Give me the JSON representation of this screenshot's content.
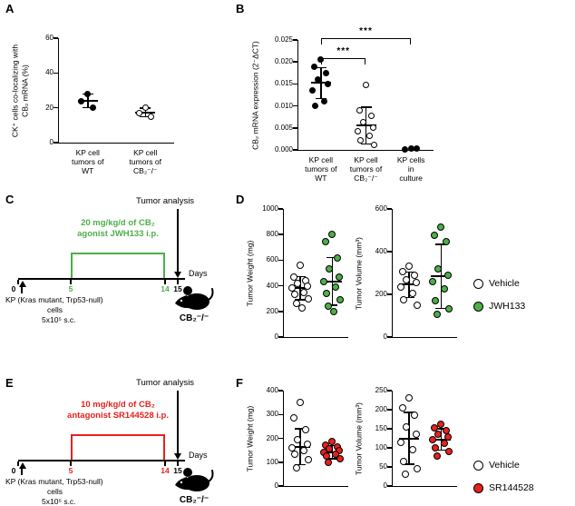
{
  "colors": {
    "green": "#4daf4a",
    "red": "#e8211d",
    "black": "#000000",
    "white": "#ffffff"
  },
  "panels": {
    "A": {
      "label": "A"
    },
    "B": {
      "label": "B"
    },
    "C": {
      "label": "C",
      "tumor_analysis": "Tumor analysis",
      "treatment_line1": "20 mg/kg/d of CB₂",
      "treatment_line2": "agonist JWH133 i.p.",
      "accent": "#4daf4a",
      "day0": "0",
      "day5": "5",
      "day14": "14",
      "day15": "15",
      "days_label": "Days",
      "cells_line1": "KP (Kras mutant, Trp53-null)",
      "cells_line2": "cells",
      "cells_line3": "5x10⁵ s.c.",
      "mouse_label": "CB₂⁻/⁻"
    },
    "D": {
      "label": "D",
      "legend": [
        {
          "label": "Vehicle",
          "fill": "#ffffff"
        },
        {
          "label": "JWH133",
          "fill": "#4daf4a"
        }
      ]
    },
    "E": {
      "label": "E",
      "tumor_analysis": "Tumor analysis",
      "treatment_line1": "10 mg/kg/d of CB₂",
      "treatment_line2": "antagonist SR144528 i.p.",
      "accent": "#e8211d",
      "day0": "0",
      "day5": "5",
      "day14": "14",
      "day15": "15",
      "days_label": "Days",
      "cells_line1": "KP (Kras mutant, Trp53-null)",
      "cells_line2": "cells",
      "cells_line3": "5x10⁵ s.c.",
      "mouse_label": "CB₂⁻/⁻"
    },
    "F": {
      "label": "F",
      "legend": [
        {
          "label": "Vehicle",
          "fill": "#ffffff"
        },
        {
          "label": "SR144528",
          "fill": "#e8211d"
        }
      ]
    }
  },
  "chart_data": [
    {
      "id": "chartA",
      "type": "scatter",
      "dot": 7,
      "ylabel_lines": [
        "CK⁺ cells co-localizing with",
        "CB₂ mRNA (%)"
      ],
      "ylim": [
        0,
        60
      ],
      "yticks": [
        0,
        20,
        40,
        60
      ],
      "ytick_labels": [
        "0",
        "20",
        "40",
        "60"
      ],
      "grid": false,
      "legend_position": "none",
      "groups": [
        {
          "label_lines": [
            "KP cell",
            "tumors of",
            "WT"
          ],
          "fill": "#000000",
          "values": [
            28,
            24,
            20
          ],
          "mean": 24,
          "err": 4
        },
        {
          "label_lines": [
            "KP cell",
            "tumors of",
            "CB₂⁻/⁻"
          ],
          "fill": "#ffffff",
          "values": [
            20,
            17,
            15
          ],
          "mean": 17.3,
          "err": 2.5
        }
      ]
    },
    {
      "id": "chartB",
      "type": "scatter",
      "dot": 7,
      "ylabel_lines": [
        "CB₂ mRNA expression (2⁻ΔCT)"
      ],
      "ylim": [
        0,
        0.025
      ],
      "yticks": [
        0,
        0.005,
        0.01,
        0.015,
        0.02,
        0.025
      ],
      "ytick_labels": [
        "0.000",
        "0.005",
        "0.010",
        "0.015",
        "0.020",
        "0.025"
      ],
      "grid": false,
      "legend_position": "none",
      "groups": [
        {
          "label_lines": [
            "KP cell",
            "tumors of",
            "WT"
          ],
          "fill": "#000000",
          "values": [
            0.0205,
            0.019,
            0.0175,
            0.016,
            0.015,
            0.0135,
            0.011,
            0.01
          ],
          "mean": 0.0152,
          "err": 0.0035
        },
        {
          "label_lines": [
            "KP cell",
            "tumors of",
            "CB₂⁻/⁻"
          ],
          "fill": "#ffffff",
          "values": [
            0.0148,
            0.009,
            0.0078,
            0.0062,
            0.0051,
            0.0042,
            0.0031,
            0.0021,
            0.0012
          ],
          "mean": 0.0055,
          "err": 0.0042
        },
        {
          "label_lines": [
            "KP cells",
            "in",
            "culture"
          ],
          "fill": "#000000",
          "values": [
            0.0004,
            0.0002,
            0.0003
          ]
        }
      ],
      "brackets": [
        {
          "from": 0,
          "to": 1,
          "label": "***",
          "level": 1
        },
        {
          "from": 0,
          "to": 2,
          "label": "***",
          "level": 2
        }
      ]
    },
    {
      "id": "chartD1",
      "type": "scatter",
      "dot": 8,
      "ylabel_lines": [
        "Tumor Weight (mg)"
      ],
      "ylim": [
        0,
        1000
      ],
      "yticks": [
        0,
        200,
        400,
        600,
        800,
        1000
      ],
      "ytick_labels": [
        "0",
        "200",
        "400",
        "600",
        "800",
        "1000"
      ],
      "grid": false,
      "legend_position": "right",
      "groups": [
        {
          "name": "Vehicle",
          "fill": "#ffffff",
          "values": [
            560,
            470,
            440,
            420,
            400,
            380,
            350,
            330,
            300,
            260,
            230
          ],
          "mean": 380,
          "err": 90
        },
        {
          "name": "JWH133",
          "fill": "#4daf4a",
          "values": [
            800,
            745,
            620,
            530,
            470,
            430,
            390,
            340,
            290,
            240,
            200
          ],
          "mean": 435,
          "err": 185
        }
      ]
    },
    {
      "id": "chartD2",
      "type": "scatter",
      "dot": 8,
      "ylabel_lines": [
        "Tumor Volume (mm³)"
      ],
      "ylim": [
        0,
        600
      ],
      "yticks": [
        0,
        200,
        400,
        600
      ],
      "ytick_labels": [
        "0",
        "200",
        "400",
        "600"
      ],
      "grid": false,
      "legend_position": "right",
      "groups": [
        {
          "name": "Vehicle",
          "fill": "#ffffff",
          "values": [
            330,
            305,
            290,
            270,
            255,
            235,
            205,
            175,
            150
          ],
          "mean": 245,
          "err": 60
        },
        {
          "name": "JWH133",
          "fill": "#4daf4a",
          "values": [
            515,
            475,
            445,
            320,
            290,
            260,
            225,
            170,
            130,
            105
          ],
          "mean": 285,
          "err": 150
        }
      ]
    },
    {
      "id": "chartF1",
      "type": "scatter",
      "dot": 8,
      "ylabel_lines": [
        "Tumor Weight (mg)"
      ],
      "ylim": [
        0,
        400
      ],
      "yticks": [
        0,
        100,
        200,
        300,
        400
      ],
      "ytick_labels": [
        "0",
        "100",
        "200",
        "300",
        "400"
      ],
      "grid": false,
      "legend_position": "right",
      "groups": [
        {
          "name": "Vehicle",
          "fill": "#ffffff",
          "values": [
            350,
            285,
            235,
            195,
            175,
            160,
            150,
            135,
            110,
            75
          ],
          "mean": 165,
          "err": 75
        },
        {
          "name": "SR144528",
          "fill": "#e8211d",
          "values": [
            185,
            172,
            163,
            155,
            148,
            142,
            133,
            126,
            115,
            100
          ],
          "mean": 142,
          "err": 28
        }
      ]
    },
    {
      "id": "chartF2",
      "type": "scatter",
      "dot": 8,
      "ylabel_lines": [
        "Tumor Volume (mm³)"
      ],
      "ylim": [
        0,
        250
      ],
      "yticks": [
        0,
        50,
        100,
        150,
        200,
        250
      ],
      "ytick_labels": [
        "0",
        "50",
        "100",
        "150",
        "200",
        "250"
      ],
      "grid": false,
      "legend_position": "right",
      "groups": [
        {
          "name": "Vehicle",
          "fill": "#ffffff",
          "values": [
            230,
            205,
            185,
            155,
            135,
            115,
            95,
            65,
            45,
            30
          ],
          "mean": 125,
          "err": 68
        },
        {
          "name": "SR144528",
          "fill": "#e8211d",
          "values": [
            162,
            152,
            145,
            136,
            128,
            121,
            112,
            101,
            90,
            78
          ],
          "mean": 122,
          "err": 28
        }
      ]
    }
  ]
}
